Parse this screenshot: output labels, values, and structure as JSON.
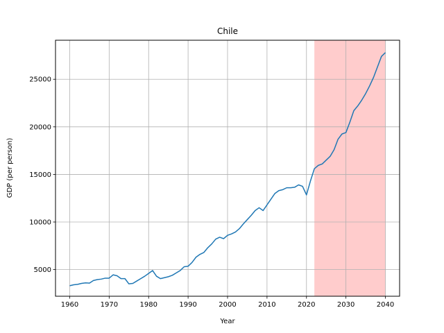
{
  "chart_data": {
    "type": "line",
    "title": "Chile",
    "xlabel": "Year",
    "ylabel": "GDP (per person)",
    "xlim": [
      1956.4,
      2043.6
    ],
    "ylim": [
      2200,
      29100
    ],
    "x_ticks": [
      1960,
      1970,
      1980,
      1990,
      2000,
      2010,
      2020,
      2030,
      2040
    ],
    "y_ticks": [
      5000,
      10000,
      15000,
      20000,
      25000
    ],
    "grid": true,
    "shaded_region": {
      "x": [
        2022,
        2040
      ],
      "color": "#ffcccc"
    },
    "series": [
      {
        "color": "#1f77b4",
        "x": [
          1960,
          1961,
          1962,
          1963,
          1964,
          1965,
          1966,
          1967,
          1968,
          1969,
          1970,
          1971,
          1972,
          1973,
          1974,
          1975,
          1976,
          1977,
          1978,
          1979,
          1980,
          1981,
          1982,
          1983,
          1984,
          1985,
          1986,
          1987,
          1988,
          1989,
          1990,
          1991,
          1992,
          1993,
          1994,
          1995,
          1996,
          1997,
          1998,
          1999,
          2000,
          2001,
          2002,
          2003,
          2004,
          2005,
          2006,
          2007,
          2008,
          2009,
          2010,
          2011,
          2012,
          2013,
          2014,
          2015,
          2016,
          2017,
          2018,
          2019,
          2020,
          2021,
          2022,
          2023,
          2024,
          2025,
          2026,
          2027,
          2028,
          2029,
          2030,
          2031,
          2032,
          2033,
          2034,
          2035,
          2036,
          2037,
          2038,
          2039,
          2040
        ],
        "y": [
          3300,
          3400,
          3450,
          3550,
          3600,
          3580,
          3850,
          3950,
          4000,
          4100,
          4100,
          4450,
          4350,
          4050,
          4050,
          3500,
          3550,
          3800,
          4050,
          4300,
          4600,
          4900,
          4300,
          4050,
          4150,
          4250,
          4400,
          4650,
          4900,
          5300,
          5350,
          5750,
          6300,
          6600,
          6800,
          7300,
          7700,
          8200,
          8400,
          8250,
          8600,
          8750,
          8950,
          9300,
          9800,
          10250,
          10700,
          11200,
          11500,
          11200,
          11800,
          12400,
          13000,
          13300,
          13400,
          13600,
          13600,
          13650,
          13900,
          13750,
          12850,
          14300,
          15600,
          15950,
          16100,
          16500,
          16900,
          17600,
          18700,
          19250,
          19400,
          20500,
          21700,
          22200,
          22800,
          23500,
          24300,
          25200,
          26300,
          27400,
          27800
        ]
      }
    ]
  }
}
